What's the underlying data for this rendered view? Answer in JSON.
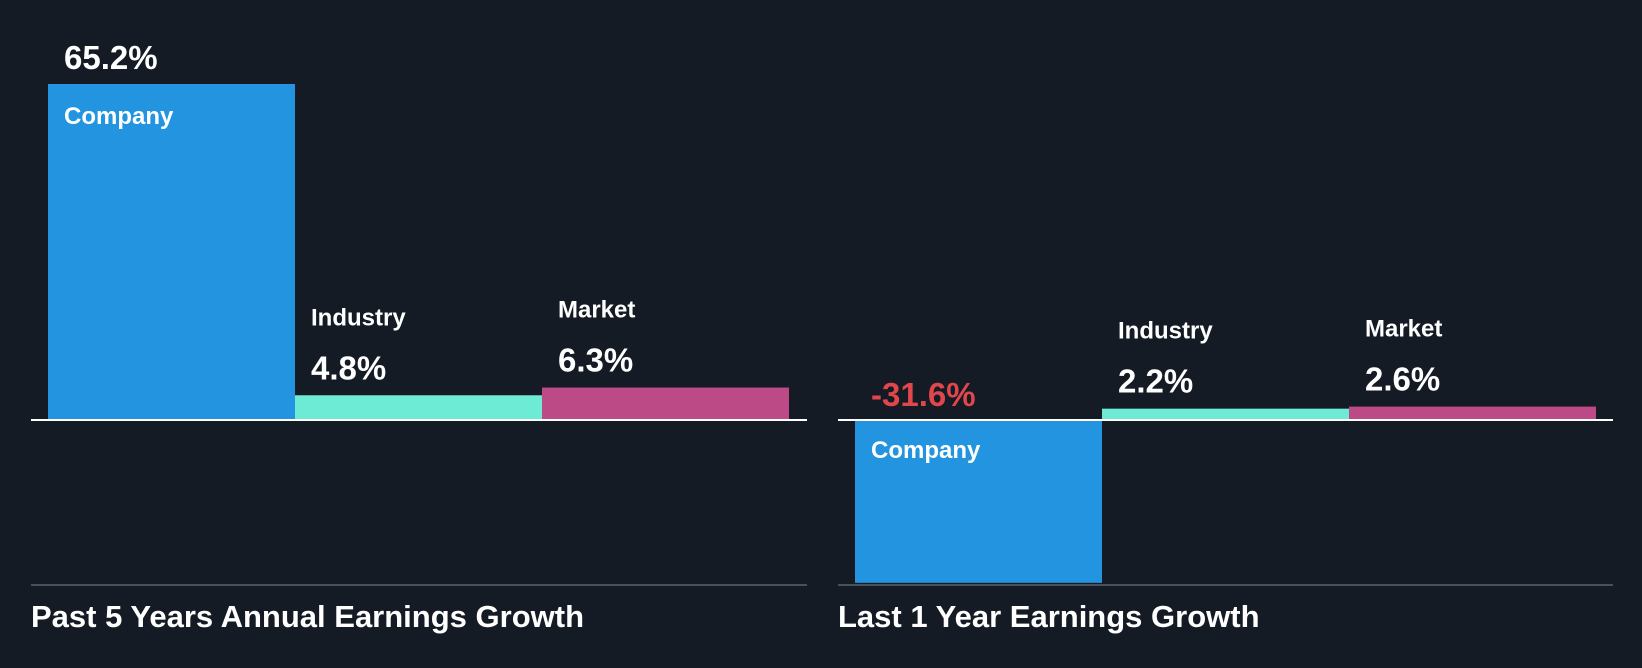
{
  "theme": {
    "background": "#151b24",
    "text": "#ffffff",
    "negative_text": "#e0474c",
    "axis_line": "#ffffff",
    "baseline": "#4a4f58"
  },
  "chart_data": [
    {
      "type": "bar",
      "title": "Past 5 Years Annual Earnings Growth",
      "unit": "%",
      "categories": [
        "Company",
        "Industry",
        "Market"
      ],
      "values": [
        65.2,
        4.8,
        6.3
      ],
      "value_labels": [
        "65.2%",
        "4.8%",
        "6.3%"
      ],
      "colors": [
        "#2394df",
        "#6eebd5",
        "#bc4a87"
      ],
      "grid": false
    },
    {
      "type": "bar",
      "title": "Last 1 Year Earnings Growth",
      "unit": "%",
      "categories": [
        "Company",
        "Industry",
        "Market"
      ],
      "values": [
        -31.6,
        2.2,
        2.6
      ],
      "value_labels": [
        "-31.6%",
        "2.2%",
        "2.6%"
      ],
      "colors": [
        "#2394df",
        "#6eebd5",
        "#bc4a87"
      ],
      "grid": false
    }
  ]
}
